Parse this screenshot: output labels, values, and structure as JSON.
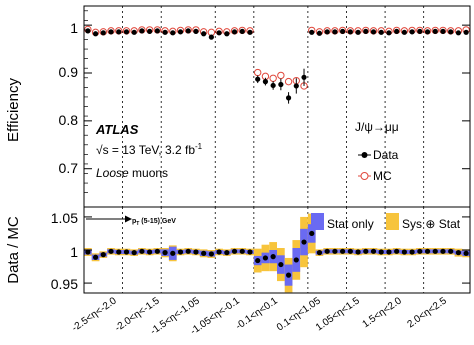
{
  "chart_data": [
    {
      "type": "scatter",
      "panel": "top",
      "ylabel": "Efficiency",
      "ylim": [
        0.62,
        1.04
      ],
      "yticks": [
        "0.7",
        "0.8",
        "0.9",
        "1"
      ],
      "annotations": {
        "atlas": "ATLAS",
        "energy": "√s = 13 TeV, 3.2 fb",
        "energy_sup": "-1",
        "selection_italic": "Loose",
        "selection_rest": " muons",
        "process": "J/ψ→μμ"
      },
      "legend_position": "right-middle",
      "series": [
        {
          "name": "Data",
          "marker": "filled-circle",
          "color": "#000000",
          "values": [
            0.988,
            0.982,
            0.984,
            0.986,
            0.986,
            0.986,
            0.985,
            0.988,
            0.987,
            0.988,
            0.985,
            0.984,
            0.986,
            0.988,
            0.987,
            0.982,
            0.975,
            0.984,
            0.982,
            0.986,
            0.987,
            0.985,
            0.887,
            0.882,
            0.874,
            0.876,
            0.848,
            0.873,
            0.891,
            0.985,
            0.983,
            0.986,
            0.986,
            0.987,
            0.986,
            0.985,
            0.987,
            0.986,
            0.985,
            0.984,
            0.987,
            0.985,
            0.986,
            0.987,
            0.986,
            0.987,
            0.987,
            0.986,
            0.984,
            0.985
          ],
          "errors": [
            0.004,
            0.004,
            0.003,
            0.003,
            0.003,
            0.003,
            0.003,
            0.003,
            0.003,
            0.003,
            0.004,
            0.004,
            0.003,
            0.003,
            0.003,
            0.004,
            0.005,
            0.003,
            0.003,
            0.003,
            0.003,
            0.003,
            0.008,
            0.008,
            0.009,
            0.012,
            0.012,
            0.016,
            0.018,
            0.004,
            0.003,
            0.003,
            0.003,
            0.003,
            0.003,
            0.003,
            0.003,
            0.003,
            0.003,
            0.003,
            0.003,
            0.003,
            0.003,
            0.003,
            0.003,
            0.003,
            0.003,
            0.003,
            0.003,
            0.004
          ]
        },
        {
          "name": "MC",
          "marker": "open-circle",
          "color": "#e0483c",
          "values": [
            0.991,
            0.985,
            0.986,
            0.988,
            0.988,
            0.988,
            0.988,
            0.99,
            0.99,
            0.99,
            0.988,
            0.987,
            0.989,
            0.99,
            0.99,
            0.986,
            0.985,
            0.987,
            0.986,
            0.988,
            0.989,
            0.988,
            0.901,
            0.893,
            0.889,
            0.895,
            0.882,
            0.884,
            0.873,
            0.989,
            0.986,
            0.988,
            0.988,
            0.989,
            0.988,
            0.988,
            0.989,
            0.988,
            0.988,
            0.987,
            0.989,
            0.988,
            0.989,
            0.989,
            0.988,
            0.989,
            0.989,
            0.988,
            0.988,
            0.99
          ]
        }
      ]
    },
    {
      "type": "scatter",
      "panel": "bottom",
      "ylabel": "Data / MC",
      "ylim": [
        0.935,
        1.065
      ],
      "yticks": [
        "0.95",
        "1",
        "1.05"
      ],
      "annotation_arrow": "p",
      "annotation_arrow_sub": "T",
      "annotation_arrow_rest": " (5-15) GeV",
      "bands": [
        {
          "name": "Stat only",
          "color": "#6a6af2"
        },
        {
          "name": "Sys ⊕ Stat",
          "color": "#f7c43c"
        }
      ],
      "categories": [
        "-2.5<η<-2.0",
        "-2.0<η<-1.5",
        "-1.5<η<-1.05",
        "-1.05<η<-0.1",
        "-0.1<η<0.1",
        "0.1<η<1.05",
        "1.05<η<1.5",
        "1.5<η<2.0",
        "2.0<η<2.5"
      ],
      "ratio": [
        0.997,
        0.989,
        0.993,
        0.998,
        0.997,
        0.997,
        0.996,
        0.998,
        0.997,
        0.998,
        0.996,
        0.995,
        0.997,
        0.998,
        0.997,
        0.995,
        0.994,
        0.997,
        0.996,
        0.998,
        0.998,
        0.997,
        0.984,
        0.988,
        0.99,
        0.978,
        0.962,
        0.985,
        1.012,
        1.025,
        0.996,
        0.998,
        0.998,
        0.998,
        0.998,
        0.997,
        0.998,
        0.998,
        0.997,
        0.997,
        0.998,
        0.997,
        0.997,
        0.998,
        0.998,
        0.998,
        0.998,
        0.998,
        0.996,
        0.995
      ],
      "stat_err": [
        0.004,
        0.004,
        0.003,
        0.003,
        0.003,
        0.003,
        0.003,
        0.003,
        0.003,
        0.003,
        0.005,
        0.01,
        0.003,
        0.003,
        0.003,
        0.004,
        0.004,
        0.003,
        0.003,
        0.003,
        0.003,
        0.003,
        0.007,
        0.008,
        0.01,
        0.014,
        0.016,
        0.018,
        0.02,
        0.014,
        0.003,
        0.003,
        0.003,
        0.003,
        0.003,
        0.003,
        0.003,
        0.003,
        0.003,
        0.003,
        0.003,
        0.003,
        0.003,
        0.003,
        0.003,
        0.003,
        0.003,
        0.003,
        0.003,
        0.004
      ],
      "syst_err": [
        0.006,
        0.006,
        0.005,
        0.005,
        0.005,
        0.005,
        0.005,
        0.005,
        0.005,
        0.005,
        0.007,
        0.012,
        0.005,
        0.005,
        0.005,
        0.006,
        0.006,
        0.005,
        0.005,
        0.005,
        0.005,
        0.005,
        0.018,
        0.02,
        0.022,
        0.025,
        0.026,
        0.03,
        0.038,
        0.03,
        0.005,
        0.005,
        0.005,
        0.005,
        0.005,
        0.005,
        0.005,
        0.005,
        0.005,
        0.005,
        0.005,
        0.005,
        0.005,
        0.005,
        0.005,
        0.005,
        0.005,
        0.005,
        0.006,
        0.006
      ]
    }
  ]
}
